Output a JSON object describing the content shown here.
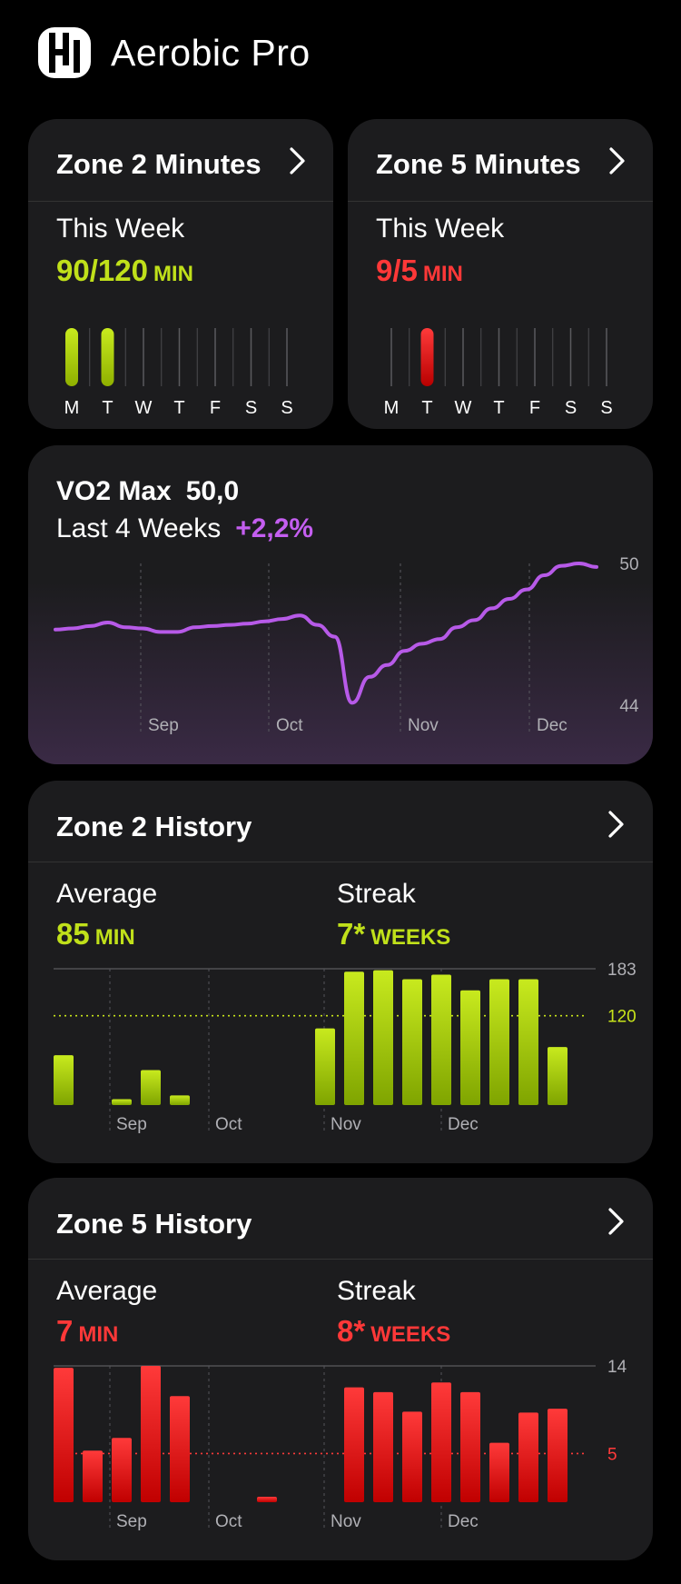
{
  "app": {
    "title": "Aerobic Pro"
  },
  "zone2_minutes": {
    "title": "Zone 2 Minutes",
    "period_label": "This Week",
    "value": "90/120",
    "unit": "MIN",
    "days": [
      "M",
      "T",
      "W",
      "T",
      "F",
      "S",
      "S"
    ],
    "day_fill": [
      1,
      1,
      0,
      0,
      0,
      0,
      0
    ],
    "color": "#b8dc12"
  },
  "zone5_minutes": {
    "title": "Zone 5 Minutes",
    "period_label": "This Week",
    "value": "9/5",
    "unit": "MIN",
    "days": [
      "M",
      "T",
      "W",
      "T",
      "F",
      "S",
      "S"
    ],
    "day_fill": [
      0,
      1,
      0,
      0,
      0,
      0,
      0
    ],
    "color": "#ff2a2a"
  },
  "vo2max": {
    "title": "VO2 Max",
    "value": "50,0",
    "period_label": "Last 4 Weeks",
    "change": "+2,2%",
    "color": "#b75ae8",
    "chart_data": {
      "type": "line",
      "x_ticks": [
        "Sep",
        "Oct",
        "Nov",
        "Dec"
      ],
      "y_ticks": [
        "50",
        "44"
      ],
      "ylim": [
        44,
        50
      ],
      "values": [
        47.2,
        47.25,
        47.35,
        47.5,
        47.3,
        47.25,
        47.1,
        47.1,
        47.3,
        47.35,
        47.4,
        47.45,
        47.55,
        47.65,
        47.8,
        47.4,
        46.9,
        44.1,
        45.2,
        45.7,
        46.3,
        46.6,
        46.8,
        47.3,
        47.6,
        48.1,
        48.5,
        48.9,
        49.5,
        49.9,
        50.0,
        49.85
      ]
    }
  },
  "zone2_history": {
    "title": "Zone 2 History",
    "average_label": "Average",
    "average_value": "85",
    "average_unit": "MIN",
    "streak_label": "Streak",
    "streak_value": "7*",
    "streak_unit": "WEEKS",
    "color": "#b8dc12",
    "chart_data": {
      "type": "bar",
      "x_ticks": [
        "Sep",
        "Oct",
        "Nov",
        "Dec"
      ],
      "y_ticks": [
        "183",
        "120"
      ],
      "ylim": [
        0,
        183
      ],
      "target": 120,
      "values": [
        67,
        0,
        8,
        47,
        13,
        0,
        0,
        0,
        0,
        103,
        179,
        181,
        169,
        175,
        154,
        169,
        169,
        78
      ]
    }
  },
  "zone5_history": {
    "title": "Zone 5 History",
    "average_label": "Average",
    "average_value": "7",
    "average_unit": "MIN",
    "streak_label": "Streak",
    "streak_value": "8*",
    "streak_unit": "WEEKS",
    "color": "#ff2a2a",
    "chart_data": {
      "type": "bar",
      "x_ticks": [
        "Sep",
        "Oct",
        "Nov",
        "Dec"
      ],
      "y_ticks": [
        "14",
        "5"
      ],
      "ylim": [
        0,
        14
      ],
      "target": 5,
      "values": [
        13.8,
        5.3,
        6.6,
        14.0,
        10.9,
        0,
        0,
        0.4,
        0,
        0,
        11.8,
        11.3,
        9.3,
        12.3,
        11.3,
        6.1,
        9.2,
        9.6
      ]
    }
  }
}
